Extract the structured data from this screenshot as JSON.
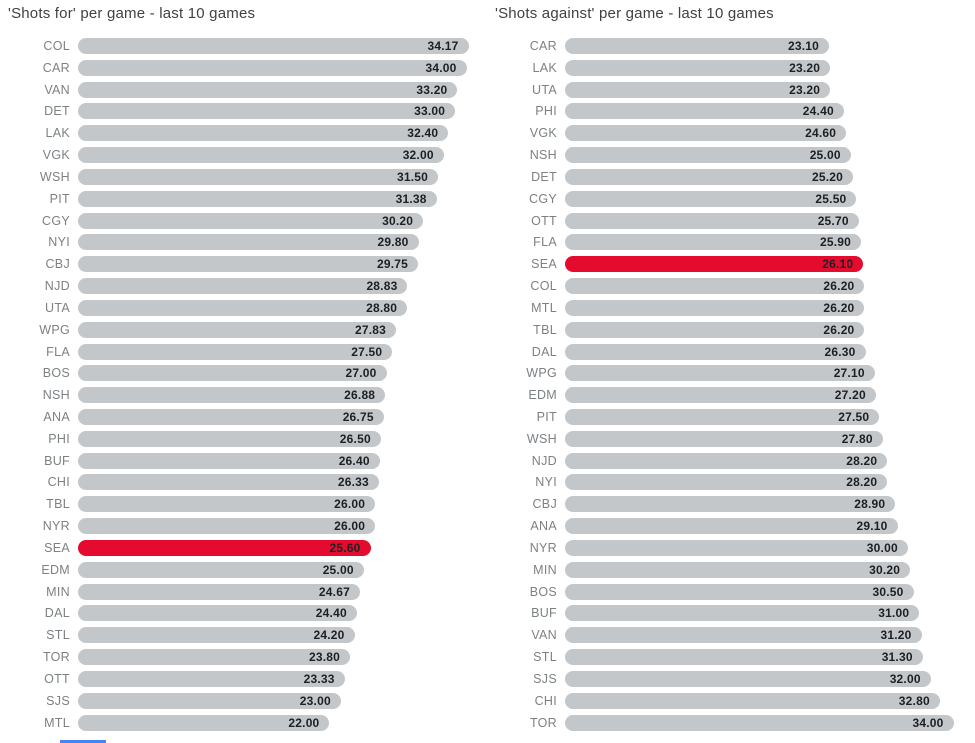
{
  "page": {
    "background": "#ffffff"
  },
  "colors": {
    "bar_gray": "#c3c7ca",
    "highlight_red": "#e50b2e",
    "title_text": "#3e4245",
    "team_label": "#7c8184",
    "value_text": "#1d2023",
    "scrollbar_blue": "#4285f4"
  },
  "chart_data": [
    {
      "type": "bar",
      "orientation": "horizontal",
      "title": "'Shots for' per game - last 10 games",
      "categories": [
        "COL",
        "CAR",
        "VAN",
        "DET",
        "LAK",
        "VGK",
        "WSH",
        "PIT",
        "CGY",
        "NYI",
        "CBJ",
        "NJD",
        "UTA",
        "WPG",
        "FLA",
        "BOS",
        "NSH",
        "ANA",
        "PHI",
        "BUF",
        "CHI",
        "TBL",
        "NYR",
        "SEA",
        "EDM",
        "MIN",
        "DAL",
        "STL",
        "TOR",
        "OTT",
        "SJS",
        "MTL"
      ],
      "values": [
        34.17,
        34.0,
        33.2,
        33.0,
        32.4,
        32.0,
        31.5,
        31.38,
        30.2,
        29.8,
        29.75,
        28.83,
        28.8,
        27.83,
        27.5,
        27.0,
        26.88,
        26.75,
        26.5,
        26.4,
        26.33,
        26.0,
        26.0,
        25.6,
        25.0,
        24.67,
        24.4,
        24.2,
        23.8,
        23.33,
        23.0,
        22.0
      ],
      "highlight_category": "SEA",
      "xlim": [
        0,
        35
      ],
      "grid": false,
      "legend": false,
      "value_labels_inside_bars": true
    },
    {
      "type": "bar",
      "orientation": "horizontal",
      "title": "'Shots against' per game - last 10 games",
      "categories": [
        "CAR",
        "LAK",
        "UTA",
        "PHI",
        "VGK",
        "NSH",
        "DET",
        "CGY",
        "OTT",
        "FLA",
        "SEA",
        "COL",
        "MTL",
        "TBL",
        "DAL",
        "WPG",
        "EDM",
        "PIT",
        "WSH",
        "NJD",
        "NYI",
        "CBJ",
        "ANA",
        "NYR",
        "MIN",
        "BOS",
        "BUF",
        "VAN",
        "STL",
        "SJS",
        "CHI",
        "TOR"
      ],
      "values": [
        23.1,
        23.2,
        23.2,
        24.4,
        24.6,
        25.0,
        25.2,
        25.5,
        25.7,
        25.9,
        26.1,
        26.2,
        26.2,
        26.2,
        26.3,
        27.1,
        27.2,
        27.5,
        27.8,
        28.2,
        28.2,
        28.9,
        29.1,
        30.0,
        30.2,
        30.5,
        31.0,
        31.2,
        31.3,
        32.0,
        32.8,
        34.0
      ],
      "highlight_category": "SEA",
      "xlim": [
        0,
        35
      ],
      "grid": false,
      "legend": false,
      "value_labels_inside_bars": true
    }
  ]
}
